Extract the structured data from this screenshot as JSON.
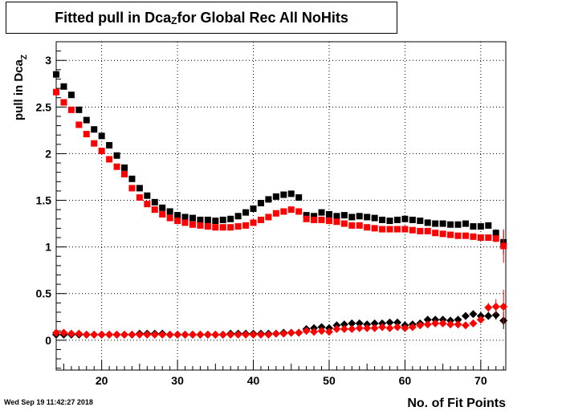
{
  "title_main": "Fitted pull in Dca",
  "title_sub": "Z",
  "title_rest": " for Global Rec All NoHits",
  "timestamp": "Wed Sep 19 11:42:27 2018",
  "chart_data": {
    "type": "scatter",
    "title": "Fitted pull in DcaZ for Global Rec All NoHits",
    "xlabel": "No. of Fit Points",
    "ylabel_main": "pull in Dca",
    "ylabel_sub": "Z",
    "xlim": [
      14,
      73.3
    ],
    "ylim": [
      -0.32,
      3.2
    ],
    "xticks": [
      20,
      30,
      40,
      50,
      60,
      70
    ],
    "yticks": [
      0,
      0.5,
      1,
      1.5,
      2,
      2.5,
      3
    ],
    "ytick_labels": [
      "0",
      "0.5",
      "1",
      "1.5",
      "2",
      "2.5",
      "3"
    ],
    "grid": true,
    "series": [
      {
        "marker": "square",
        "color": "#000000",
        "x": [
          14,
          15,
          16,
          17,
          18,
          19,
          20,
          21,
          22,
          23,
          24,
          25,
          26,
          27,
          28,
          29,
          30,
          31,
          32,
          33,
          34,
          35,
          36,
          37,
          38,
          39,
          40,
          41,
          42,
          43,
          44,
          45,
          46,
          47,
          48,
          49,
          50,
          51,
          52,
          53,
          54,
          55,
          56,
          57,
          58,
          59,
          60,
          61,
          62,
          63,
          64,
          65,
          66,
          67,
          68,
          69,
          70,
          71,
          72,
          73
        ],
        "y": [
          2.85,
          2.72,
          2.63,
          2.47,
          2.36,
          2.26,
          2.19,
          2.09,
          1.98,
          1.85,
          1.73,
          1.63,
          1.55,
          1.48,
          1.42,
          1.38,
          1.34,
          1.32,
          1.31,
          1.29,
          1.29,
          1.28,
          1.29,
          1.3,
          1.33,
          1.37,
          1.41,
          1.47,
          1.51,
          1.54,
          1.56,
          1.57,
          1.53,
          1.34,
          1.33,
          1.37,
          1.35,
          1.33,
          1.34,
          1.32,
          1.33,
          1.32,
          1.31,
          1.29,
          1.28,
          1.29,
          1.3,
          1.29,
          1.28,
          1.26,
          1.25,
          1.25,
          1.24,
          1.24,
          1.25,
          1.22,
          1.22,
          1.23,
          1.15,
          1.05
        ],
        "err": [
          0,
          0,
          0,
          0,
          0,
          0,
          0,
          0,
          0,
          0,
          0,
          0,
          0,
          0,
          0,
          0,
          0,
          0,
          0,
          0,
          0,
          0,
          0,
          0,
          0,
          0,
          0,
          0,
          0,
          0,
          0,
          0,
          0,
          0,
          0,
          0,
          0,
          0,
          0,
          0,
          0,
          0,
          0,
          0,
          0,
          0,
          0,
          0,
          0,
          0,
          0,
          0,
          0,
          0,
          0,
          0,
          0,
          0.02,
          0.04,
          0.13
        ]
      },
      {
        "marker": "square",
        "color": "#ff0000",
        "x": [
          14,
          15,
          16,
          17,
          18,
          19,
          20,
          21,
          22,
          23,
          24,
          25,
          26,
          27,
          28,
          29,
          30,
          31,
          32,
          33,
          34,
          35,
          36,
          37,
          38,
          39,
          40,
          41,
          42,
          43,
          44,
          45,
          46,
          47,
          48,
          49,
          50,
          51,
          52,
          53,
          54,
          55,
          56,
          57,
          58,
          59,
          60,
          61,
          62,
          63,
          64,
          65,
          66,
          67,
          68,
          69,
          70,
          71,
          72,
          73
        ],
        "y": [
          2.66,
          2.55,
          2.47,
          2.31,
          2.21,
          2.11,
          2.03,
          1.94,
          1.86,
          1.78,
          1.63,
          1.53,
          1.46,
          1.4,
          1.35,
          1.31,
          1.28,
          1.26,
          1.24,
          1.23,
          1.22,
          1.21,
          1.21,
          1.21,
          1.22,
          1.23,
          1.26,
          1.29,
          1.32,
          1.36,
          1.38,
          1.4,
          1.38,
          1.3,
          1.29,
          1.29,
          1.28,
          1.27,
          1.25,
          1.23,
          1.23,
          1.21,
          1.2,
          1.19,
          1.19,
          1.19,
          1.19,
          1.18,
          1.17,
          1.17,
          1.15,
          1.14,
          1.13,
          1.12,
          1.12,
          1.11,
          1.1,
          1.1,
          1.09,
          1.01
        ],
        "err": [
          0,
          0,
          0,
          0,
          0,
          0,
          0,
          0,
          0,
          0,
          0,
          0,
          0,
          0,
          0,
          0,
          0,
          0,
          0,
          0,
          0,
          0,
          0,
          0,
          0,
          0,
          0,
          0,
          0,
          0,
          0,
          0,
          0,
          0,
          0,
          0,
          0,
          0,
          0,
          0,
          0,
          0,
          0,
          0,
          0,
          0,
          0,
          0,
          0,
          0,
          0,
          0,
          0,
          0,
          0,
          0,
          0,
          0.02,
          0.04,
          0.18
        ]
      },
      {
        "marker": "diamond",
        "color": "#000000",
        "x": [
          14,
          15,
          16,
          17,
          18,
          19,
          20,
          21,
          22,
          23,
          24,
          25,
          26,
          27,
          28,
          29,
          30,
          31,
          32,
          33,
          34,
          35,
          36,
          37,
          38,
          39,
          40,
          41,
          42,
          43,
          44,
          45,
          46,
          47,
          48,
          49,
          50,
          51,
          52,
          53,
          54,
          55,
          56,
          57,
          58,
          59,
          60,
          61,
          62,
          63,
          64,
          65,
          66,
          67,
          68,
          69,
          70,
          71,
          72,
          73
        ],
        "y": [
          0.06,
          0.06,
          0.06,
          0.06,
          0.06,
          0.06,
          0.06,
          0.06,
          0.06,
          0.06,
          0.06,
          0.07,
          0.07,
          0.07,
          0.07,
          0.06,
          0.06,
          0.06,
          0.06,
          0.06,
          0.06,
          0.06,
          0.06,
          0.07,
          0.07,
          0.07,
          0.07,
          0.07,
          0.07,
          0.07,
          0.08,
          0.08,
          0.08,
          0.12,
          0.13,
          0.14,
          0.13,
          0.16,
          0.17,
          0.18,
          0.18,
          0.17,
          0.18,
          0.18,
          0.19,
          0.19,
          0.16,
          0.17,
          0.18,
          0.22,
          0.22,
          0.22,
          0.21,
          0.22,
          0.26,
          0.28,
          0.26,
          0.26,
          0.27,
          0.21
        ],
        "err": [
          0,
          0,
          0,
          0,
          0,
          0,
          0,
          0,
          0,
          0,
          0,
          0,
          0,
          0,
          0,
          0,
          0,
          0,
          0,
          0,
          0,
          0,
          0,
          0,
          0,
          0,
          0,
          0,
          0,
          0,
          0,
          0,
          0,
          0,
          0,
          0,
          0,
          0,
          0,
          0,
          0,
          0,
          0,
          0,
          0,
          0,
          0,
          0,
          0,
          0,
          0,
          0,
          0,
          0,
          0,
          0,
          0.03,
          0.03,
          0.05,
          0.09
        ]
      },
      {
        "marker": "diamond",
        "color": "#ff0000",
        "x": [
          14,
          15,
          16,
          17,
          18,
          19,
          20,
          21,
          22,
          23,
          24,
          25,
          26,
          27,
          28,
          29,
          30,
          31,
          32,
          33,
          34,
          35,
          36,
          37,
          38,
          39,
          40,
          41,
          42,
          43,
          44,
          45,
          46,
          47,
          48,
          49,
          50,
          51,
          52,
          53,
          54,
          55,
          56,
          57,
          58,
          59,
          60,
          61,
          62,
          63,
          64,
          65,
          66,
          67,
          68,
          69,
          70,
          71,
          72,
          73
        ],
        "y": [
          0.08,
          0.08,
          0.07,
          0.07,
          0.06,
          0.06,
          0.06,
          0.06,
          0.06,
          0.06,
          0.06,
          0.06,
          0.06,
          0.06,
          0.06,
          0.06,
          0.06,
          0.06,
          0.06,
          0.06,
          0.06,
          0.06,
          0.06,
          0.06,
          0.06,
          0.06,
          0.06,
          0.06,
          0.06,
          0.07,
          0.07,
          0.08,
          0.08,
          0.1,
          0.09,
          0.1,
          0.09,
          0.12,
          0.12,
          0.12,
          0.13,
          0.13,
          0.13,
          0.14,
          0.13,
          0.14,
          0.13,
          0.14,
          0.16,
          0.17,
          0.18,
          0.18,
          0.17,
          0.17,
          0.16,
          0.18,
          0.22,
          0.35,
          0.36,
          0.36
        ],
        "err": [
          0,
          0,
          0,
          0,
          0,
          0,
          0,
          0,
          0,
          0,
          0,
          0,
          0,
          0,
          0,
          0,
          0,
          0,
          0,
          0,
          0,
          0,
          0,
          0,
          0,
          0,
          0,
          0,
          0,
          0,
          0,
          0,
          0,
          0,
          0,
          0,
          0,
          0,
          0,
          0,
          0,
          0,
          0,
          0,
          0,
          0,
          0,
          0,
          0,
          0,
          0,
          0,
          0,
          0,
          0,
          0,
          0,
          0.05,
          0.08,
          0.18
        ]
      }
    ]
  }
}
